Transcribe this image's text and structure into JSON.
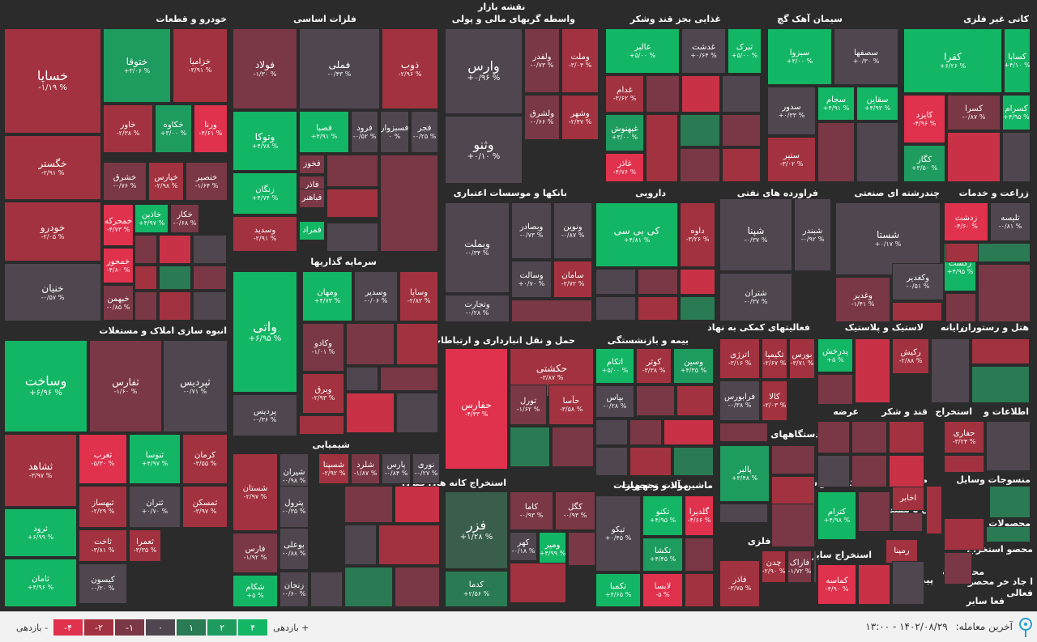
{
  "title": "نقشه بازار",
  "colors": {
    "n4": "#e0314d",
    "n3": "#c93246",
    "n2": "#a2323f",
    "n1": "#7a3745",
    "z": "#4f4650",
    "p1": "#3a5e4c",
    "p2": "#2a7a53",
    "p3": "#1e9b5e",
    "p4": "#13b665"
  },
  "sectors": [
    {
      "id": "s1",
      "label": "خودرو و قطعات"
    },
    {
      "id": "s2",
      "label": "فلزات اساسی"
    },
    {
      "id": "s3",
      "label": "واسطه گریهای مالی و پولی"
    },
    {
      "id": "s4",
      "label": "غذایی بجز قند وشکر"
    },
    {
      "id": "s5",
      "label": "سیمان آهک گچ"
    },
    {
      "id": "s6",
      "label": "کانی غیر فلزی"
    },
    {
      "id": "s7",
      "label": "بانکها و موسسات اعتباری"
    },
    {
      "id": "s8",
      "label": "دارویی"
    },
    {
      "id": "s9",
      "label": "فراورده های نفتی"
    },
    {
      "id": "s10",
      "label": "چندرشته ای صنعتی"
    },
    {
      "id": "s11",
      "label": "زراعت و خدمات"
    },
    {
      "id": "s12",
      "label": "انبوه سازی املاک و مستغلات"
    },
    {
      "id": "s13",
      "label": "سرمایه گذاریها"
    },
    {
      "id": "s14",
      "label": "حمل و نقل انبارداری و ارتباطات"
    },
    {
      "id": "s15",
      "label": "بیمه و بازنشستگی"
    },
    {
      "id": "s16",
      "label": "فعالیتهای کمکی به نهاد"
    },
    {
      "id": "s17",
      "label": "لاستیک و پلاستیک"
    },
    {
      "id": "s18",
      "label": "رایانه"
    },
    {
      "id": "s19",
      "label": "هتل و رستوران"
    },
    {
      "id": "s20",
      "label": "شیمیایی"
    },
    {
      "id": "s21",
      "label": "دستگاههای برقی"
    },
    {
      "id": "s22",
      "label": "عرضه"
    },
    {
      "id": "s23",
      "label": "قند و شکر"
    },
    {
      "id": "s24",
      "label": "استخراج"
    },
    {
      "id": "s25",
      "label": "اطلاعات و"
    },
    {
      "id": "s26",
      "label": "استخراج کانه های فلزی"
    },
    {
      "id": "s27",
      "label": "مواد و تجهیزات"
    },
    {
      "id": "s28",
      "label": "ماشین آلات و تجهیزات"
    },
    {
      "id": "s29",
      "label": "کاشی و سرامیک"
    },
    {
      "id": "s30",
      "label": "مخابرات"
    },
    {
      "id": "s31",
      "label": "وسایل"
    },
    {
      "id": "s32",
      "label": "منسوجات"
    },
    {
      "id": "s33",
      "label": "محصولات"
    },
    {
      "id": "s34",
      "label": "فنی و مهندسی"
    },
    {
      "id": "s35",
      "label": "محصولات فلزی"
    },
    {
      "id": "s36",
      "label": "استخراج سایر"
    },
    {
      "id": "s37",
      "label": "پیمانکاری"
    },
    {
      "id": "s38",
      "label": "محصولات"
    },
    {
      "id": "s39",
      "label": "محصو استخراج"
    },
    {
      "id": "s40",
      "label": "ا جاد خر محصو"
    },
    {
      "id": "s41",
      "label": "فعالی"
    },
    {
      "id": "s42",
      "label": "فعا سایر"
    }
  ],
  "tiles": [
    {
      "n": "خساپا",
      "v": "-۱/۱۹ %",
      "c": "n2"
    },
    {
      "n": "ختوقا",
      "v": "+۳/۰۶ %",
      "c": "p3"
    },
    {
      "n": "خزامیا",
      "v": "-۳/۹۱ %",
      "c": "n2"
    },
    {
      "n": "خگستر",
      "v": "-۲/۹۱ %",
      "c": "n2"
    },
    {
      "n": "خاور",
      "v": "-۲/۳۸ %",
      "c": "n2"
    },
    {
      "n": "خکاوه",
      "v": "+۳/۰۰ %",
      "c": "p3"
    },
    {
      "n": "ورنا",
      "v": "-۴/۶۱ %",
      "c": "n4"
    },
    {
      "n": "خشرق",
      "v": "-۰/۷۶ %",
      "c": "n1"
    },
    {
      "n": "خپارس",
      "v": "-۲/۹۸ %",
      "c": "n2"
    },
    {
      "n": "خنصیر",
      "v": "-۱/۶۴ %",
      "c": "n1"
    },
    {
      "n": "خودرو",
      "v": "-۲/۰۵ %",
      "c": "n2"
    },
    {
      "n": "خمحرکه",
      "v": "-۴/۷۳ %",
      "c": "n4"
    },
    {
      "n": "خاذین",
      "v": "+۴/۹۷ %",
      "c": "p4"
    },
    {
      "n": "خکار",
      "v": "-۰/۶۸ %",
      "c": "n1"
    },
    {
      "n": "خمحور",
      "v": "-۴/۸۰ %",
      "c": "n4"
    },
    {
      "n": "خبهمن",
      "v": "-۰/۸۵ %",
      "c": "n1"
    },
    {
      "n": "خمهر",
      "v": "-۱/۸۶ %",
      "c": "n1"
    },
    {
      "n": "خنیان",
      "v": "-۰/۵۷ %",
      "c": "z"
    },
    {
      "n": "فولاد",
      "v": "-۱/۳۰ %",
      "c": "n1"
    },
    {
      "n": "فملی",
      "v": "-۰/۴۳ %",
      "c": "z"
    },
    {
      "n": "ذوب",
      "v": "-۲/۹۶ %",
      "c": "n2"
    },
    {
      "n": "وتوکا",
      "v": "+۴/۷۸ %",
      "c": "p4"
    },
    {
      "n": "فصبا",
      "v": "+۴/۹۱ %",
      "c": "p4"
    },
    {
      "n": "فرود",
      "v": "-۰/۵۲ %",
      "c": "z"
    },
    {
      "n": "فسبزوار",
      "v": "۰ %",
      "c": "z"
    },
    {
      "n": "فجر",
      "v": "-۰/۲۵ %",
      "c": "z"
    },
    {
      "n": "فخوز",
      "v": "-۰/۷۵ %",
      "c": "n1"
    },
    {
      "n": "فاذر",
      "v": "-۱/۰۳ %",
      "c": "n1"
    },
    {
      "n": "زنگان",
      "v": "+۴/۷۴ %",
      "c": "p4"
    },
    {
      "n": "فباهنر",
      "v": "-۰/۸۴ %",
      "c": "n1"
    },
    {
      "n": "فمراد",
      "v": "+۴/۸۰ %",
      "c": "p4"
    },
    {
      "n": "وسدید",
      "v": "-۲/۹۱ %",
      "c": "n2"
    },
    {
      "n": "وارس",
      "v": "+۰/۹۶ %",
      "c": "z"
    },
    {
      "n": "ولفدر",
      "v": "-۰/۷۳ %",
      "c": "n1"
    },
    {
      "n": "وملت",
      "v": "-۳/۰۴ %",
      "c": "n2"
    },
    {
      "n": "ولشرق",
      "v": "-۰/۶۶ %",
      "c": "n1"
    },
    {
      "n": "وشهر",
      "v": "-۲/۴۷ %",
      "c": "n2"
    },
    {
      "n": "وثنو",
      "v": "+۰/۱۰ %",
      "c": "z"
    },
    {
      "n": "غالبر",
      "v": "+۵/۰۰ %",
      "c": "p4"
    },
    {
      "n": "غدشت",
      "v": "+۰/۶۴ %",
      "c": "z"
    },
    {
      "n": "تبرک",
      "v": "+۵/۰۰ %",
      "c": "p4"
    },
    {
      "n": "غدام",
      "v": "-۳/۶۲ %",
      "c": "n2"
    },
    {
      "n": "غپهنوش",
      "v": "+۳/۰۰ %",
      "c": "p3"
    },
    {
      "n": "غاذر",
      "v": "-۴/۷۶ %",
      "c": "n4"
    },
    {
      "n": "سبزوا",
      "v": "+۳/۰۰ %",
      "c": "p4"
    },
    {
      "n": "سصفها",
      "v": "+۰/۳۰ %",
      "c": "z"
    },
    {
      "n": "سجام",
      "v": "+۴/۹۱ %",
      "c": "p4"
    },
    {
      "n": "سقاین",
      "v": "+۴/۹۳ %",
      "c": "p4"
    },
    {
      "n": "سدور",
      "v": "+۰/۳۳ %",
      "c": "z"
    },
    {
      "n": "ستیر",
      "v": "-۳/۰۲ %",
      "c": "n2"
    },
    {
      "n": "کفرا",
      "v": "+۶/۲۶ %",
      "c": "p4"
    },
    {
      "n": "کساپا",
      "v": "+۴/۱۰ %",
      "c": "p4"
    },
    {
      "n": "کایزد",
      "v": "-۴/۹۶ %",
      "c": "n4"
    },
    {
      "n": "کسرا",
      "v": "-۰/۸۷ %",
      "c": "n1"
    },
    {
      "n": "کسرام",
      "v": "+۴/۹۵ %",
      "c": "p4"
    },
    {
      "n": "کگاز",
      "v": "+۳/۵۰ %",
      "c": "p3"
    },
    {
      "n": "وبملت",
      "v": "-۰/۳۴ %",
      "c": "z"
    },
    {
      "n": "وبصادر",
      "v": "-۰/۷۳ %",
      "c": "z"
    },
    {
      "n": "ونوین",
      "v": "-۰/۸۷ %",
      "c": "z"
    },
    {
      "n": "وسالت",
      "v": "+۰/۷۰ %",
      "c": "z"
    },
    {
      "n": "سامان",
      "v": "-۲/۷۲ %",
      "c": "n2"
    },
    {
      "n": "وتجارت",
      "v": "-۰/۲۸ %",
      "c": "z"
    },
    {
      "n": "کی بی سی",
      "v": "+۴/۸۱ %",
      "c": "p4"
    },
    {
      "n": "داوه",
      "v": "-۳/۲۶ %",
      "c": "n2"
    },
    {
      "n": "شپنا",
      "v": "-۰/۳۷ %",
      "c": "z"
    },
    {
      "n": "شبندر",
      "v": "-۰/۹۲ %",
      "c": "z"
    },
    {
      "n": "شتران",
      "v": "-۰/۳۷ %",
      "c": "z"
    },
    {
      "n": "شستا",
      "v": "+۰/۱۷ %",
      "c": "z"
    },
    {
      "n": "وغدیر",
      "v": "-۱/۴۱ %",
      "c": "n1"
    },
    {
      "n": "وکغدیر",
      "v": "-۰/۵۱ %",
      "c": "z"
    },
    {
      "n": "زدشت",
      "v": "-۴/۶۰ %",
      "c": "n4"
    },
    {
      "n": "تلیسه",
      "v": "-۰/۸۱ %",
      "c": "z"
    },
    {
      "n": "زکشت",
      "v": "+۴/۹۵ %",
      "c": "p4"
    },
    {
      "n": "وساخت",
      "v": "+۶/۹۶ %",
      "c": "p4"
    },
    {
      "n": "ثفارس",
      "v": "-۱/۶۰ %",
      "c": "n1"
    },
    {
      "n": "ثپردیس",
      "v": "-۰/۷۱ %",
      "c": "z"
    },
    {
      "n": "ثشاهد",
      "v": "-۳/۹۷ %",
      "c": "n2"
    },
    {
      "n": "ثغرب",
      "v": "-۵/۳۰ %",
      "c": "n4"
    },
    {
      "n": "ثنوسا",
      "v": "+۴/۹۷ %",
      "c": "p4"
    },
    {
      "n": "کرمان",
      "v": "-۳/۵۵ %",
      "c": "n2"
    },
    {
      "n": "ثبهساز",
      "v": "-۲/۲۹ %",
      "c": "n2"
    },
    {
      "n": "ثتران",
      "v": "+۰/۷۰ %",
      "c": "z"
    },
    {
      "n": "ثمسکن",
      "v": "-۳/۹۷ %",
      "c": "n2"
    },
    {
      "n": "ثرود",
      "v": "+۶/۹۹ %",
      "c": "p4"
    },
    {
      "n": "ثاخت",
      "v": "-۳/۸۱ %",
      "c": "n2"
    },
    {
      "n": "ثعمرا",
      "v": "-۳/۳۵ %",
      "c": "n2"
    },
    {
      "n": "ثامان",
      "v": "+۴/۹۶ %",
      "c": "p4"
    },
    {
      "n": "کیسون",
      "v": "-۰/۲۰ %",
      "c": "z"
    },
    {
      "n": "واتی",
      "v": "+۶/۹۵ %",
      "c": "p4"
    },
    {
      "n": "ومهان",
      "v": "+۴/۷۳ %",
      "c": "p4"
    },
    {
      "n": "وسدیر",
      "v": "-۰/۰۶ %",
      "c": "z"
    },
    {
      "n": "وساپا",
      "v": "-۲/۸۲ %",
      "c": "n2"
    },
    {
      "n": "وکادو",
      "v": "-۱/۰۱ %",
      "c": "n1"
    },
    {
      "n": "وبرق",
      "v": "-۲/۹۳ %",
      "c": "n2"
    },
    {
      "n": "پردیس",
      "v": "-۰/۳۶ %",
      "c": "z"
    },
    {
      "n": "حکشتی",
      "v": "-۳/۸۷ %",
      "c": "n2"
    },
    {
      "n": "حفارس",
      "v": "-۴/۴۳ %",
      "c": "n4"
    },
    {
      "n": "تورل",
      "v": "-۱/۶۲ %",
      "c": "n1"
    },
    {
      "n": "حآسا",
      "v": "-۳/۵۸ %",
      "c": "n2"
    },
    {
      "n": "اتکام",
      "v": "+۵/۰۰ %",
      "c": "p4"
    },
    {
      "n": "کوثر",
      "v": "-۳/۳۸ %",
      "c": "n2"
    },
    {
      "n": "وسین",
      "v": "+۴/۳۵ %",
      "c": "p3"
    },
    {
      "n": "بپاس",
      "v": "-۰/۲۸ %",
      "c": "z"
    },
    {
      "n": "اترژی",
      "v": "-۳/۱۶ %",
      "c": "n2"
    },
    {
      "n": "تکیمیا",
      "v": "-۲/۶۷ %",
      "c": "n2"
    },
    {
      "n": "بورس",
      "v": "-۳/۷۱ %",
      "c": "n2"
    },
    {
      "n": "فرابورس",
      "v": "-۰/۳۸ %",
      "c": "z"
    },
    {
      "n": "کالا",
      "v": "-۲/۰۳ %",
      "c": "n2"
    },
    {
      "n": "پدرخش",
      "v": "+۵ %",
      "c": "p4"
    },
    {
      "n": "رکیش",
      "v": "-۲/۸۸ %",
      "c": "n2"
    },
    {
      "n": "شستان",
      "v": "-۲/۹۷ %",
      "c": "n2"
    },
    {
      "n": "شیران",
      "v": "-۰/۹۸ %",
      "c": "z"
    },
    {
      "n": "شسپنا",
      "v": "-۲/۹۲ %",
      "c": "n2"
    },
    {
      "n": "شلرد",
      "v": "-۱/۸۷ %",
      "c": "n1"
    },
    {
      "n": "پارس",
      "v": "-۰/۸۴ %",
      "c": "z"
    },
    {
      "n": "نوری",
      "v": "-۰/۲۷ %",
      "c": "z"
    },
    {
      "n": "پترول",
      "v": "-۰/۳۵ %",
      "c": "z"
    },
    {
      "n": "فارس",
      "v": "-۱/۹۲ %",
      "c": "n1"
    },
    {
      "n": "بوعلی",
      "v": "-۰/۸۸ %",
      "c": "z"
    },
    {
      "n": "شکام",
      "v": "+۵ %",
      "c": "p4"
    },
    {
      "n": "زنجان",
      "v": "-۰/۶۰ %",
      "c": "z"
    },
    {
      "n": "پالبر",
      "v": "+۳/۴۸ %",
      "c": "p3"
    },
    {
      "n": "فزر",
      "v": "+۱/۲۸ %",
      "c": "p1"
    },
    {
      "n": "کاما",
      "v": "-۰/۹۳ %",
      "c": "n1"
    },
    {
      "n": "کگل",
      "v": "-۰/۹۳ %",
      "c": "n1"
    },
    {
      "n": "کهر",
      "v": "-۰/۱۸ %",
      "c": "z"
    },
    {
      "n": "ومیر",
      "v": "+۴/۹۹ %",
      "c": "p4"
    },
    {
      "n": "کدما",
      "v": "+۲/۵۶ %",
      "c": "p2"
    },
    {
      "n": "تیکو",
      "v": "+۰/۴۵ %",
      "c": "z"
    },
    {
      "n": "تکنو",
      "v": "+۴/۹۵ %",
      "c": "p4"
    },
    {
      "n": "گلدیرا",
      "v": "-۴/۶۶ %",
      "c": "n4"
    },
    {
      "n": "تکشا",
      "v": "+۴/۴۵ %",
      "c": "p3"
    },
    {
      "n": "تکمبا",
      "v": "+۴/۶۵ %",
      "c": "p4"
    },
    {
      "n": "لابسا",
      "v": "-۵ %",
      "c": "n4"
    },
    {
      "n": "کترام",
      "v": "+۴/۹۸ %",
      "c": "p4"
    },
    {
      "n": "کماسه",
      "v": "-۴/۹۰ %",
      "c": "n4"
    },
    {
      "n": "فاذر",
      "v": "-۳/۷۵ %",
      "c": "n2"
    },
    {
      "n": "چدن",
      "v": "-۲/۹۰ %",
      "c": "n2"
    },
    {
      "n": "فاراک",
      "v": "-۱/۷۲ %",
      "c": "n1"
    },
    {
      "n": "حفاری",
      "v": "-۳/۲۴ %",
      "c": "n2"
    },
    {
      "n": "اخابر",
      "v": "-۲/۶۲ %",
      "c": "n2"
    },
    {
      "n": "رمپنا",
      "v": "-۲/۹۹ %",
      "c": "n2"
    }
  ],
  "legend": {
    "label_up": "بازدهی +",
    "label_down": "بازدهی -",
    "swatches": [
      {
        "t": "۴",
        "c": "p4"
      },
      {
        "t": "۲",
        "c": "p3"
      },
      {
        "t": "۱",
        "c": "p2"
      },
      {
        "t": "۰",
        "c": "z"
      },
      {
        "t": "-۱",
        "c": "n1"
      },
      {
        "t": "-۲",
        "c": "n2"
      },
      {
        "t": "-۴",
        "c": "n4"
      }
    ]
  },
  "last_trade": {
    "label": "آخرین معامله:",
    "value": "۱۴۰۲/۰۸/۲۹ - ۱۳:۰۰"
  },
  "info_icon": "info-pin-icon"
}
